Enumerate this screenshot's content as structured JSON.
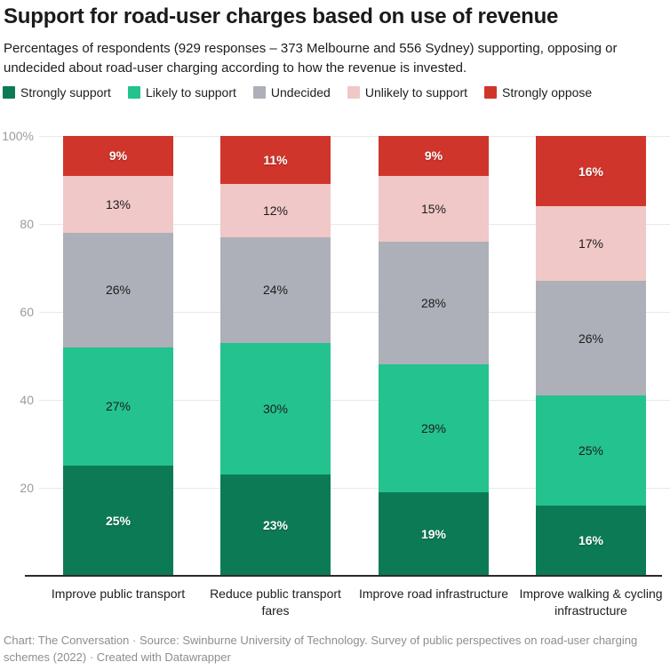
{
  "header": {
    "title": "Support for road-user charges based on use of revenue",
    "subtitle": "Percentages of respondents (929 responses – 373 Melbourne and 556 Sydney) supporting, opposing or undecided about road-user charging according to how the revenue is invested."
  },
  "chart_data": {
    "type": "bar",
    "stacked": true,
    "orientation": "vertical",
    "title": "Support for road-user charges based on use of revenue",
    "subtitle": "Percentages of respondents (929 responses – 373 Melbourne and 556 Sydney) supporting, opposing or undecided about road-user charging according to how the revenue is invested.",
    "unit": "%",
    "categories": [
      "Improve public transport",
      "Reduce public transport fares",
      "Improve road infrastructure",
      "Improve walking & cycling infrastructure"
    ],
    "series": [
      {
        "name": "Strongly support",
        "color": "#0c7b55",
        "label_style": "light",
        "values": [
          25,
          23,
          19,
          16
        ]
      },
      {
        "name": "Likely to support",
        "color": "#24c28e",
        "label_style": "dark",
        "values": [
          27,
          30,
          29,
          25
        ]
      },
      {
        "name": "Undecided",
        "color": "#adb0b8",
        "label_style": "dark",
        "values": [
          26,
          24,
          28,
          26
        ]
      },
      {
        "name": "Unlikely to support",
        "color": "#f0c8c7",
        "label_style": "dark",
        "values": [
          13,
          12,
          15,
          17
        ]
      },
      {
        "name": "Strongly oppose",
        "color": "#d0352b",
        "label_style": "light",
        "values": [
          9,
          11,
          9,
          16
        ]
      }
    ],
    "ylim": [
      0,
      100
    ],
    "y_ticks": [
      {
        "value": 20,
        "label": "20"
      },
      {
        "value": 40,
        "label": "40"
      },
      {
        "value": 60,
        "label": "60"
      },
      {
        "value": 80,
        "label": "80"
      },
      {
        "value": 100,
        "label": "100%"
      }
    ],
    "grid": true,
    "legend_position": "top",
    "value_suffix": "%"
  },
  "footer": {
    "text": "Chart: The Conversation · Source: Swinburne University of Technology. Survey of public perspectives on road-user charging schemes (2022) · Created with Datawrapper"
  }
}
